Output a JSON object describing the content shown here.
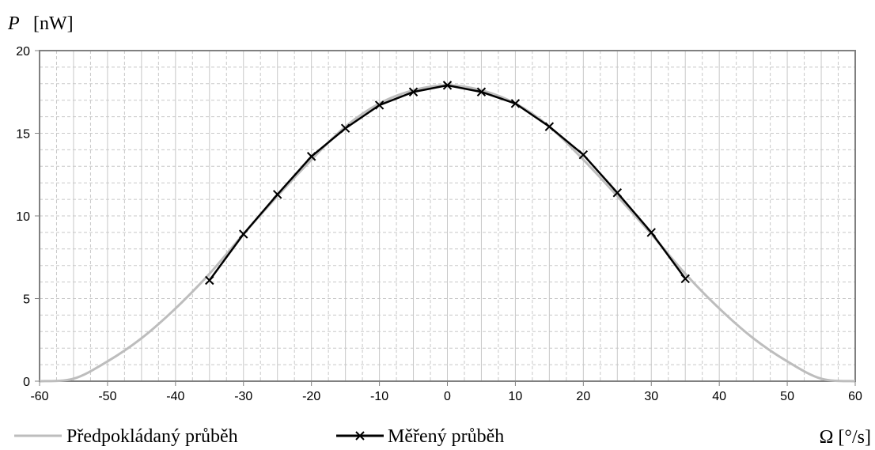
{
  "chart_data": {
    "type": "line",
    "title": "",
    "ylabel_symbol": "P",
    "ylabel_unit": "[nW]",
    "xlabel": "Ω [°/s]",
    "xlim": [
      -60,
      60
    ],
    "ylim": [
      0,
      20
    ],
    "xticks": [
      -60,
      -50,
      -40,
      -30,
      -20,
      -10,
      0,
      10,
      20,
      30,
      40,
      50,
      60
    ],
    "yticks": [
      0,
      5,
      10,
      15,
      20
    ],
    "grid": true,
    "legend_position": "bottom-left",
    "series": [
      {
        "name": "Předpokládaný průběh",
        "color": "#bdbdbd",
        "marker": "none",
        "x": [
          -60,
          -55,
          -50,
          -45,
          -40,
          -35,
          -30,
          -25,
          -20,
          -15,
          -10,
          -5,
          0,
          5,
          10,
          15,
          20,
          25,
          30,
          35,
          40,
          45,
          50,
          55,
          60
        ],
        "values": [
          0,
          0.15,
          1.2,
          2.6,
          4.4,
          6.5,
          8.9,
          11.2,
          13.4,
          15.4,
          16.8,
          17.6,
          17.9,
          17.6,
          16.8,
          15.4,
          13.4,
          11.2,
          8.9,
          6.5,
          4.4,
          2.6,
          1.2,
          0.15,
          0
        ]
      },
      {
        "name": "Měřený průběh",
        "color": "#000000",
        "marker": "x",
        "x": [
          -35,
          -30,
          -25,
          -20,
          -15,
          -10,
          -5,
          0,
          5,
          10,
          15,
          20,
          25,
          30,
          35
        ],
        "values": [
          6.1,
          8.9,
          11.3,
          13.6,
          15.3,
          16.7,
          17.5,
          17.9,
          17.5,
          16.8,
          15.4,
          13.7,
          11.4,
          9.0,
          6.2
        ]
      }
    ]
  }
}
